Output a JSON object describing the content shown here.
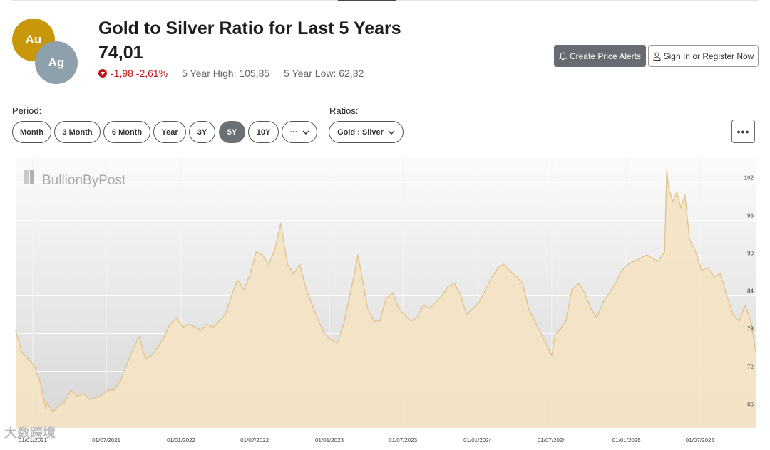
{
  "header": {
    "title": "Gold to Silver Ratio for Last 5 Years",
    "price": "74,01",
    "change": "-1,98 -2,61%",
    "high": "5 Year High: 105,85",
    "low": "5 Year Low: 62,82",
    "coin_au": "Au",
    "coin_ag": "Ag"
  },
  "actions": {
    "alert_label": "Create Price Alerts",
    "sign_label": "Sign In or Register Now",
    "more_label": "•••"
  },
  "controls": {
    "period_label": "Period:",
    "ratios_label": "Ratios:",
    "periods": [
      "Month",
      "3 Month",
      "6 Month",
      "Year",
      "3Y",
      "5Y",
      "10Y",
      "···"
    ],
    "active_period": "5Y",
    "ratio_selected": "Gold : Silver"
  },
  "watermark": "大数跨境",
  "colors": {
    "gold": "#c9980a",
    "silver": "#8fa0ad",
    "negative": "#c0161a",
    "series_line": "#e2c48e",
    "series_fill": "#f3e3c5"
  },
  "chart_data": {
    "type": "area",
    "logo": "BullionByPost",
    "ylim": [
      63,
      106
    ],
    "y_ticks": [
      66,
      72,
      78,
      84,
      90,
      96,
      102
    ],
    "x_ticks": [
      "01/01/2021",
      "01/07/2021",
      "01/01/2022",
      "01/07/2022",
      "01/01/2023",
      "01/07/2023",
      "01/01/2024",
      "01/07/2024",
      "01/01/2025",
      "01/07/2025"
    ],
    "x_start": "2020-11-20",
    "series": [
      {
        "name": "",
        "points": [
          [
            "2020-11-20",
            78.5
          ],
          [
            "2020-12-05",
            75.0
          ],
          [
            "2020-12-20",
            74.0
          ],
          [
            "2021-01-05",
            72.8
          ],
          [
            "2021-01-20",
            70.0
          ],
          [
            "2021-02-02",
            66.0
          ],
          [
            "2021-02-05",
            67.0
          ],
          [
            "2021-02-20",
            65.5
          ],
          [
            "2021-03-05",
            66.5
          ],
          [
            "2021-03-20",
            67.0
          ],
          [
            "2021-04-05",
            69.0
          ],
          [
            "2021-04-20",
            68.0
          ],
          [
            "2021-05-05",
            68.5
          ],
          [
            "2021-05-20",
            67.5
          ],
          [
            "2021-06-05",
            67.8
          ],
          [
            "2021-06-20",
            68.2
          ],
          [
            "2021-07-05",
            69.0
          ],
          [
            "2021-07-20",
            69.0
          ],
          [
            "2021-08-05",
            70.5
          ],
          [
            "2021-08-20",
            73.0
          ],
          [
            "2021-09-05",
            75.5
          ],
          [
            "2021-09-20",
            77.5
          ],
          [
            "2021-10-05",
            74.0
          ],
          [
            "2021-10-20",
            74.5
          ],
          [
            "2021-11-05",
            75.8
          ],
          [
            "2021-11-20",
            77.5
          ],
          [
            "2021-12-05",
            79.5
          ],
          [
            "2021-12-20",
            80.5
          ],
          [
            "2022-01-05",
            79.0
          ],
          [
            "2022-01-20",
            79.5
          ],
          [
            "2022-02-05",
            79.0
          ],
          [
            "2022-02-20",
            78.5
          ],
          [
            "2022-03-05",
            79.5
          ],
          [
            "2022-03-20",
            79.0
          ],
          [
            "2022-04-05",
            80.0
          ],
          [
            "2022-04-20",
            81.0
          ],
          [
            "2022-05-05",
            84.0
          ],
          [
            "2022-05-20",
            86.5
          ],
          [
            "2022-06-05",
            85.0
          ],
          [
            "2022-06-20",
            87.5
          ],
          [
            "2022-07-05",
            91.0
          ],
          [
            "2022-07-20",
            90.5
          ],
          [
            "2022-08-05",
            89.0
          ],
          [
            "2022-08-20",
            91.5
          ],
          [
            "2022-09-03",
            95.5
          ],
          [
            "2022-09-20",
            89.0
          ],
          [
            "2022-10-05",
            87.5
          ],
          [
            "2022-10-20",
            89.0
          ],
          [
            "2022-11-05",
            85.0
          ],
          [
            "2022-11-20",
            82.5
          ],
          [
            "2022-12-05",
            80.0
          ],
          [
            "2022-12-20",
            78.0
          ],
          [
            "2023-01-05",
            77.0
          ],
          [
            "2023-01-20",
            76.5
          ],
          [
            "2023-02-05",
            79.5
          ],
          [
            "2023-02-20",
            84.0
          ],
          [
            "2023-03-05",
            88.0
          ],
          [
            "2023-03-12",
            90.5
          ],
          [
            "2023-03-25",
            86.0
          ],
          [
            "2023-04-05",
            82.0
          ],
          [
            "2023-04-20",
            80.0
          ],
          [
            "2023-05-05",
            80.0
          ],
          [
            "2023-05-20",
            83.5
          ],
          [
            "2023-06-05",
            84.5
          ],
          [
            "2023-06-20",
            82.0
          ],
          [
            "2023-07-05",
            81.0
          ],
          [
            "2023-07-20",
            80.0
          ],
          [
            "2023-08-05",
            80.5
          ],
          [
            "2023-08-20",
            82.5
          ],
          [
            "2023-09-05",
            82.0
          ],
          [
            "2023-09-20",
            83.0
          ],
          [
            "2023-10-05",
            84.0
          ],
          [
            "2023-10-20",
            85.5
          ],
          [
            "2023-11-05",
            86.0
          ],
          [
            "2023-11-20",
            84.0
          ],
          [
            "2023-12-05",
            81.0
          ],
          [
            "2023-12-20",
            82.0
          ],
          [
            "2024-01-05",
            83.0
          ],
          [
            "2024-01-20",
            85.0
          ],
          [
            "2024-02-05",
            87.0
          ],
          [
            "2024-02-20",
            88.5
          ],
          [
            "2024-03-05",
            89.0
          ],
          [
            "2024-03-20",
            88.0
          ],
          [
            "2024-04-05",
            87.0
          ],
          [
            "2024-04-20",
            86.0
          ],
          [
            "2024-05-05",
            82.0
          ],
          [
            "2024-05-20",
            80.0
          ],
          [
            "2024-06-05",
            78.0
          ],
          [
            "2024-06-20",
            76.0
          ],
          [
            "2024-07-01",
            74.5
          ],
          [
            "2024-07-10",
            78.0
          ],
          [
            "2024-07-20",
            78.5
          ],
          [
            "2024-08-05",
            80.0
          ],
          [
            "2024-08-20",
            85.0
          ],
          [
            "2024-09-05",
            86.0
          ],
          [
            "2024-09-20",
            84.5
          ],
          [
            "2024-10-05",
            82.0
          ],
          [
            "2024-10-20",
            80.5
          ],
          [
            "2024-11-05",
            83.0
          ],
          [
            "2024-11-20",
            84.5
          ],
          [
            "2024-12-05",
            86.0
          ],
          [
            "2024-12-20",
            88.0
          ],
          [
            "2025-01-05",
            89.0
          ],
          [
            "2025-01-20",
            89.5
          ],
          [
            "2025-02-05",
            90.0
          ],
          [
            "2025-02-20",
            90.5
          ],
          [
            "2025-03-05",
            90.0
          ],
          [
            "2025-03-20",
            89.5
          ],
          [
            "2025-04-05",
            91.0
          ],
          [
            "2025-04-10",
            104.0
          ],
          [
            "2025-04-15",
            101.0
          ],
          [
            "2025-04-25",
            99.0
          ],
          [
            "2025-05-05",
            100.5
          ],
          [
            "2025-05-15",
            98.0
          ],
          [
            "2025-05-25",
            100.0
          ],
          [
            "2025-06-05",
            93.0
          ],
          [
            "2025-06-20",
            91.0
          ],
          [
            "2025-07-05",
            88.0
          ],
          [
            "2025-07-20",
            88.5
          ],
          [
            "2025-08-05",
            87.0
          ],
          [
            "2025-08-20",
            87.5
          ],
          [
            "2025-09-05",
            84.0
          ],
          [
            "2025-09-20",
            81.0
          ],
          [
            "2025-10-05",
            80.0
          ],
          [
            "2025-10-20",
            82.5
          ],
          [
            "2025-11-05",
            79.5
          ],
          [
            "2025-11-15",
            75.0
          ]
        ]
      }
    ]
  }
}
